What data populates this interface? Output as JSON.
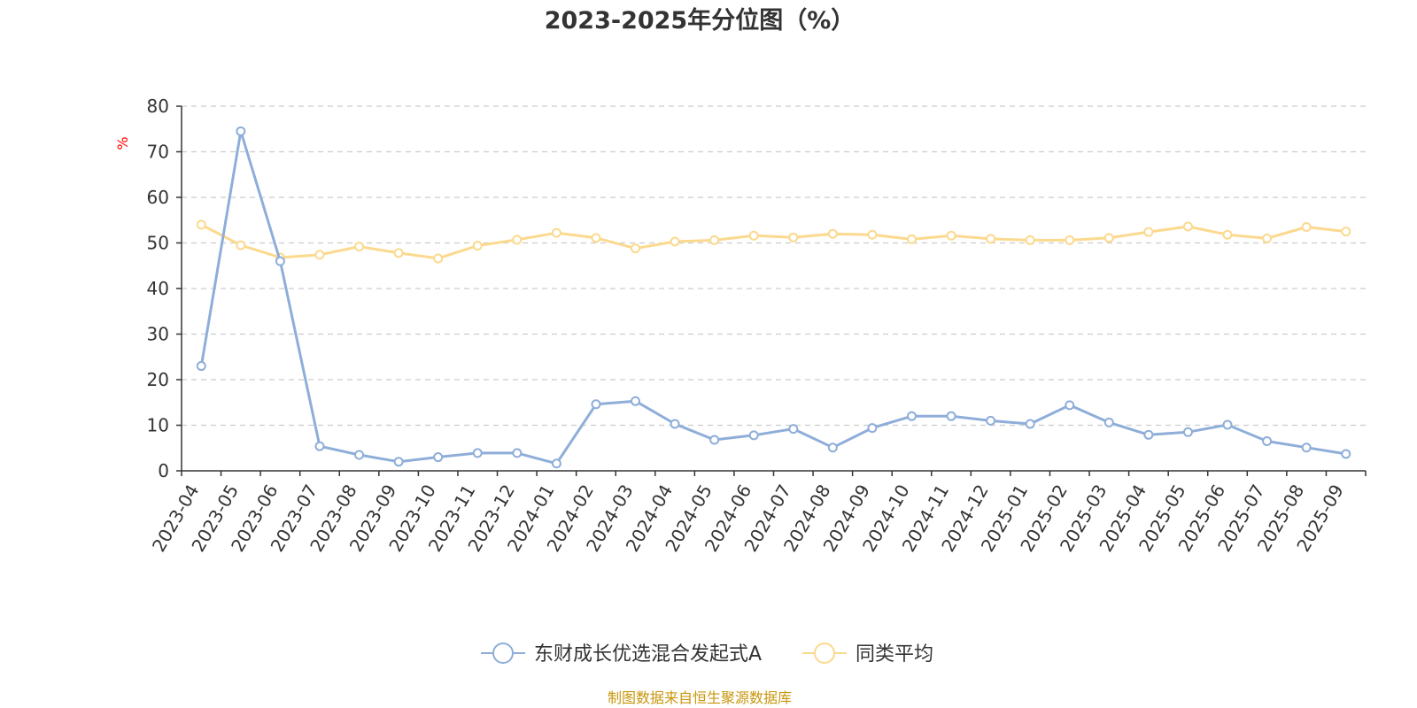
{
  "chart_data": {
    "type": "line",
    "title": "2023-2025年分位图（%）",
    "ylabel": "%",
    "xlabel": "",
    "ylim": [
      0,
      80
    ],
    "yticks": [
      0,
      10,
      20,
      30,
      40,
      50,
      60,
      70,
      80
    ],
    "grid": true,
    "legend_position": "bottom",
    "categories": [
      "2023-04",
      "2023-05",
      "2023-06",
      "2023-07",
      "2023-08",
      "2023-09",
      "2023-10",
      "2023-11",
      "2023-12",
      "2024-01",
      "2024-02",
      "2024-03",
      "2024-04",
      "2024-05",
      "2024-06",
      "2024-07",
      "2024-08",
      "2024-09",
      "2024-10",
      "2024-11",
      "2024-12",
      "2025-01",
      "2025-02",
      "2025-03",
      "2025-04",
      "2025-05",
      "2025-06",
      "2025-07",
      "2025-08",
      "2025-09"
    ],
    "series": [
      {
        "name": "东财成长优选混合发起式A",
        "color": "#8eaed9",
        "values": [
          23.0,
          74.5,
          46.0,
          5.4,
          3.5,
          2.0,
          3.0,
          3.9,
          3.9,
          1.6,
          14.6,
          15.3,
          10.3,
          6.8,
          7.8,
          9.2,
          5.1,
          9.4,
          12.0,
          12.0,
          11.0,
          10.3,
          14.4,
          10.6,
          7.9,
          8.5,
          10.1,
          6.5,
          5.1,
          3.7
        ]
      },
      {
        "name": "同类平均",
        "color": "#fbd98e",
        "values": [
          54.0,
          49.5,
          46.8,
          47.4,
          49.2,
          47.8,
          46.6,
          49.4,
          50.7,
          52.2,
          51.1,
          48.8,
          50.3,
          50.6,
          51.6,
          51.2,
          52.0,
          51.8,
          50.8,
          51.6,
          50.9,
          50.6,
          50.6,
          51.1,
          52.4,
          53.6,
          51.8,
          51.0,
          53.5,
          52.5
        ]
      }
    ],
    "source": "制图数据来自恒生聚源数据库"
  }
}
